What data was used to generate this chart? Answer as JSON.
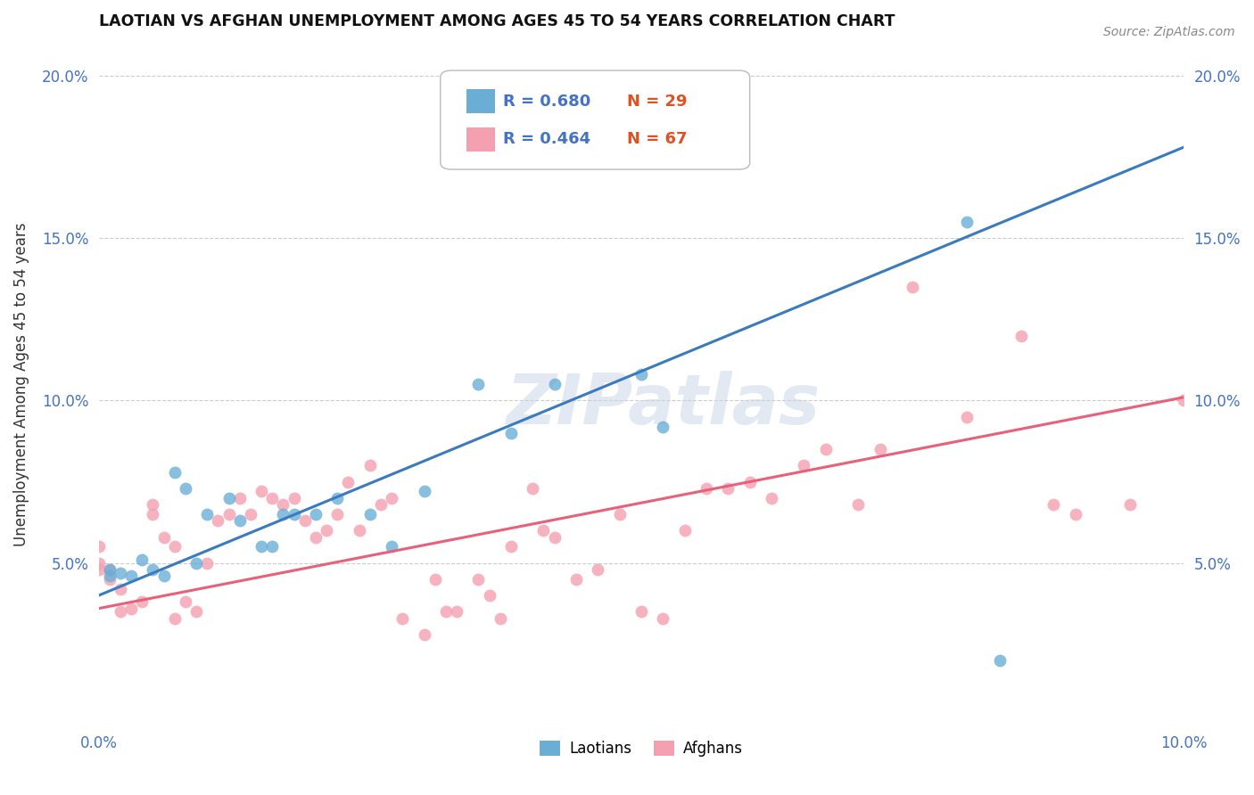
{
  "title": "LAOTIAN VS AFGHAN UNEMPLOYMENT AMONG AGES 45 TO 54 YEARS CORRELATION CHART",
  "source": "Source: ZipAtlas.com",
  "ylabel": "Unemployment Among Ages 45 to 54 years",
  "xlim": [
    0.0,
    0.1
  ],
  "ylim": [
    0.0,
    0.21
  ],
  "xticks": [
    0.0,
    0.02,
    0.04,
    0.06,
    0.08,
    0.1
  ],
  "xtick_labels": [
    "0.0%",
    "",
    "",
    "",
    "",
    "10.0%"
  ],
  "yticks": [
    0.0,
    0.05,
    0.1,
    0.15,
    0.2
  ],
  "ytick_labels": [
    "",
    "5.0%",
    "10.0%",
    "15.0%",
    "20.0%"
  ],
  "laotian_color": "#6aaed6",
  "afghan_color": "#f4a0b0",
  "line_laotian_color": "#3a7abf",
  "line_afghan_color": "#e8607a",
  "legend_r_laotian": "R = 0.680",
  "legend_n_laotian": "N = 29",
  "legend_r_afghan": "R = 0.464",
  "legend_n_afghan": "N = 67",
  "watermark": "ZIPatlas",
  "laotian_x": [
    0.001,
    0.001,
    0.002,
    0.003,
    0.004,
    0.005,
    0.006,
    0.007,
    0.008,
    0.009,
    0.01,
    0.012,
    0.013,
    0.015,
    0.016,
    0.017,
    0.018,
    0.02,
    0.022,
    0.025,
    0.027,
    0.03,
    0.035,
    0.038,
    0.042,
    0.05,
    0.052,
    0.08,
    0.083
  ],
  "laotian_y": [
    0.046,
    0.048,
    0.047,
    0.046,
    0.051,
    0.048,
    0.046,
    0.078,
    0.073,
    0.05,
    0.065,
    0.07,
    0.063,
    0.055,
    0.055,
    0.065,
    0.065,
    0.065,
    0.07,
    0.065,
    0.055,
    0.072,
    0.105,
    0.09,
    0.105,
    0.108,
    0.092,
    0.155,
    0.02
  ],
  "afghan_x": [
    0.0,
    0.0,
    0.0,
    0.001,
    0.001,
    0.002,
    0.002,
    0.003,
    0.004,
    0.005,
    0.005,
    0.006,
    0.007,
    0.007,
    0.008,
    0.009,
    0.01,
    0.011,
    0.012,
    0.013,
    0.014,
    0.015,
    0.016,
    0.017,
    0.018,
    0.019,
    0.02,
    0.021,
    0.022,
    0.023,
    0.024,
    0.025,
    0.026,
    0.027,
    0.028,
    0.03,
    0.031,
    0.032,
    0.033,
    0.035,
    0.036,
    0.037,
    0.038,
    0.04,
    0.041,
    0.042,
    0.044,
    0.046,
    0.048,
    0.05,
    0.052,
    0.054,
    0.056,
    0.058,
    0.06,
    0.062,
    0.065,
    0.067,
    0.07,
    0.072,
    0.075,
    0.08,
    0.085,
    0.088,
    0.09,
    0.095,
    0.1
  ],
  "afghan_y": [
    0.055,
    0.05,
    0.048,
    0.048,
    0.045,
    0.042,
    0.035,
    0.036,
    0.038,
    0.065,
    0.068,
    0.058,
    0.055,
    0.033,
    0.038,
    0.035,
    0.05,
    0.063,
    0.065,
    0.07,
    0.065,
    0.072,
    0.07,
    0.068,
    0.07,
    0.063,
    0.058,
    0.06,
    0.065,
    0.075,
    0.06,
    0.08,
    0.068,
    0.07,
    0.033,
    0.028,
    0.045,
    0.035,
    0.035,
    0.045,
    0.04,
    0.033,
    0.055,
    0.073,
    0.06,
    0.058,
    0.045,
    0.048,
    0.065,
    0.035,
    0.033,
    0.06,
    0.073,
    0.073,
    0.075,
    0.07,
    0.08,
    0.085,
    0.068,
    0.085,
    0.135,
    0.095,
    0.12,
    0.068,
    0.065,
    0.068,
    0.1
  ],
  "line_laotian_x0": 0.0,
  "line_laotian_y0": 0.04,
  "line_laotian_x1": 0.1,
  "line_laotian_y1": 0.178,
  "line_afghan_x0": 0.0,
  "line_afghan_y0": 0.036,
  "line_afghan_x1": 0.1,
  "line_afghan_y1": 0.101,
  "background_color": "#ffffff",
  "grid_color": "#cccccc"
}
